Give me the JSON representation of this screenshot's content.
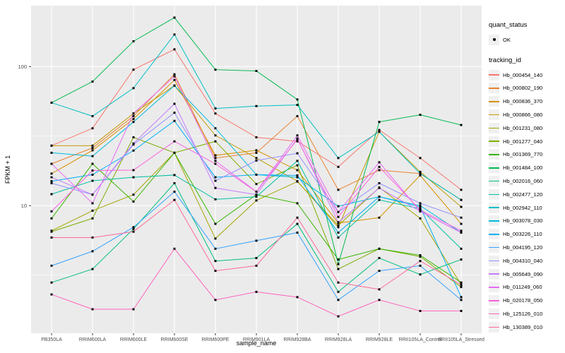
{
  "figure": {
    "y_axis": {
      "label": "FPKM + 1",
      "tick_labels": [
        "100",
        "10"
      ],
      "tick_values": [
        100,
        10
      ],
      "scale": "log10"
    },
    "x_axis": {
      "label": "sample_name"
    },
    "legend": {
      "quant_status_title": "quant_status",
      "quant_status_items": [
        {
          "label": "OK",
          "symbol": "point"
        }
      ],
      "tracking_id_title": "tracking_id"
    },
    "colors": {
      "panel_bg": "#EBEBEB",
      "grid": "#FFFFFF",
      "axis_text": "#4D4D4D",
      "marker": "#000000"
    }
  },
  "chart_data": {
    "type": "line",
    "title": "",
    "xlabel": "sample_name",
    "ylabel": "FPKM + 1",
    "yscale": "log10",
    "ylim": [
      1.2,
      280
    ],
    "yticks": [
      10,
      100
    ],
    "minor_yticks": [
      3.162,
      31.62,
      316.2
    ],
    "grid": true,
    "legend_position": "right",
    "x": [
      "PB350LA",
      "RRIM600LA",
      "RRIM600LE",
      "RRIM600SE",
      "RRIM600PE",
      "RRIM901LA",
      "RRIM928BA",
      "RRIM928LA",
      "RRIM928LE",
      "RRII105LA_Control",
      "RRII105LA_Stressed"
    ],
    "series": [
      {
        "name": "Hb_000454_140",
        "color": "#F8766D",
        "values": [
          27,
          36,
          95,
          133,
          46,
          31,
          29,
          19,
          35,
          22,
          13
        ]
      },
      {
        "name": "Hb_000802_190",
        "color": "#EA8331",
        "values": [
          20,
          26,
          44,
          88,
          22,
          24,
          44,
          13,
          18,
          17,
          11
        ]
      },
      {
        "name": "Hb_000836_370",
        "color": "#D89000",
        "values": [
          17,
          25,
          42,
          80,
          23,
          25,
          18,
          7.5,
          8.2,
          16.5,
          7.4
        ]
      },
      {
        "name": "Hb_000866_080",
        "color": "#C09B00",
        "values": [
          27,
          27,
          46,
          73,
          32,
          22,
          15,
          7,
          34,
          17.5,
          9.8
        ]
      },
      {
        "name": "Hb_001231_080",
        "color": "#A3A500",
        "values": [
          6.6,
          9.2,
          12,
          24,
          5.8,
          10.9,
          14.9,
          7.2,
          13.5,
          8.1,
          2.7
        ]
      },
      {
        "name": "Hb_001277_040",
        "color": "#7CAE00",
        "values": [
          6.5,
          8.1,
          31,
          24,
          29,
          14.3,
          19.5,
          3.5,
          4.9,
          4.3,
          2.6
        ]
      },
      {
        "name": "Hb_001369_770",
        "color": "#39B600",
        "values": [
          8.1,
          20,
          10.7,
          24,
          7.4,
          12,
          10.4,
          4.1,
          4.9,
          4.4,
          2.8
        ]
      },
      {
        "name": "Hb_001484_100",
        "color": "#00BB4E",
        "values": [
          55,
          78,
          152,
          225,
          95,
          93,
          58,
          3.8,
          40,
          45,
          38
        ]
      },
      {
        "name": "Hb_002016_060",
        "color": "#00BF7D",
        "values": [
          2.8,
          3.5,
          6.8,
          14.5,
          4.0,
          4.2,
          7.4,
          2.4,
          4.2,
          3.2,
          4.1
        ]
      },
      {
        "name": "Hb_002477_120",
        "color": "#00C1A3",
        "values": [
          12.1,
          15.1,
          16,
          16.6,
          11.1,
          11.6,
          21,
          5.9,
          11,
          9.5,
          4.9
        ]
      },
      {
        "name": "Hb_002942_110",
        "color": "#00BFC4",
        "values": [
          55,
          44,
          70,
          170,
          50,
          52,
          53,
          22,
          34,
          17,
          11
        ]
      },
      {
        "name": "Hb_003078_030",
        "color": "#00BAE0",
        "values": [
          24,
          22.7,
          40,
          73,
          36,
          16.7,
          16,
          9.9,
          11.6,
          10,
          6.4
        ]
      },
      {
        "name": "Hb_003226_110",
        "color": "#00B0F6",
        "values": [
          15,
          16.7,
          24.9,
          40.7,
          16,
          16.7,
          16.5,
          6.4,
          11.6,
          9.8,
          2.2
        ]
      },
      {
        "name": "Hb_004195_120",
        "color": "#35A2FF",
        "values": [
          3.7,
          4.7,
          7.0,
          12.6,
          4.9,
          5.6,
          6.4,
          2.1,
          3.4,
          3.7,
          2.1
        ]
      },
      {
        "name": "Hb_004310_040",
        "color": "#9590FF",
        "values": [
          14.5,
          12,
          27.5,
          46.6,
          15.1,
          21.1,
          23.8,
          9.0,
          14.5,
          10.4,
          8.2
        ]
      },
      {
        "name": "Hb_005649_090",
        "color": "#C77CFF",
        "values": [
          16,
          12,
          28,
          54,
          13.4,
          12,
          30.4,
          7.6,
          13.4,
          9.1,
          6.4
        ]
      },
      {
        "name": "Hb_011249_060",
        "color": "#E76BF3",
        "values": [
          20,
          10.4,
          46,
          85,
          21,
          12.6,
          32,
          9.0,
          20.5,
          9.1,
          6.4
        ]
      },
      {
        "name": "Hb_020178_050",
        "color": "#FA62DB",
        "values": [
          9.1,
          17.9,
          18,
          29,
          20,
          12.6,
          30,
          8.3,
          19,
          9.3,
          6.6
        ]
      },
      {
        "name": "Hb_125126_010",
        "color": "#FF62BC",
        "values": [
          2.3,
          1.8,
          1.8,
          4.9,
          2.1,
          2.4,
          2.2,
          1.6,
          2.1,
          1.75,
          1.75
        ]
      },
      {
        "name": "Hb_130389_010",
        "color": "#FF6A98",
        "values": [
          5.9,
          5.9,
          6.5,
          11,
          3.4,
          3.7,
          8.2,
          2.8,
          2.5,
          4.0,
          2.7
        ]
      }
    ]
  }
}
